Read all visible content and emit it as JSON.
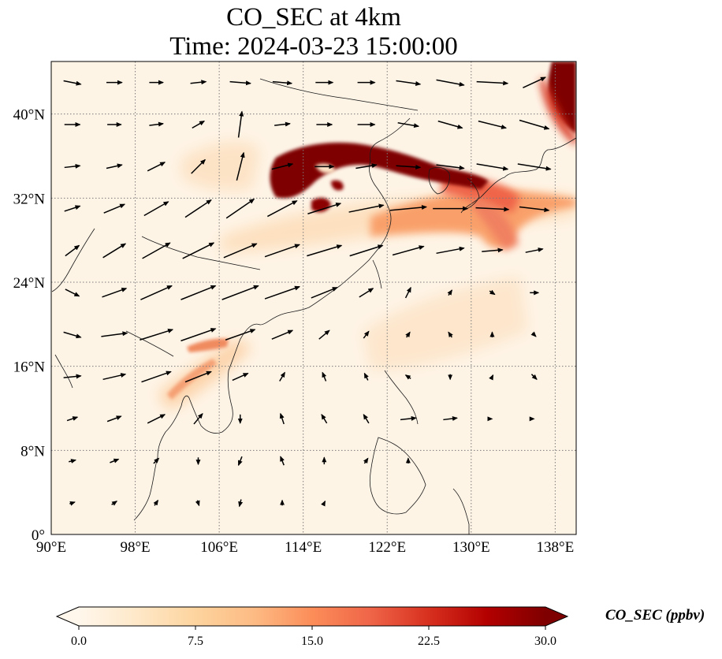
{
  "title": "CO_SEC at 4km",
  "subtitle": "Time: 2024-03-23 15:00:00",
  "map": {
    "lon_range": [
      90,
      140
    ],
    "lat_range": [
      0,
      45
    ],
    "lon_ticks": [
      "90°E",
      "98°E",
      "106°E",
      "114°E",
      "122°E",
      "130°E",
      "138°E"
    ],
    "lat_ticks": [
      "0°",
      "8°N",
      "16°N",
      "24°N",
      "32°N",
      "40°N"
    ],
    "gridlines": true,
    "colormap": "OrRd",
    "overlay": "wind vectors"
  },
  "colorbar": {
    "label": "CO_SEC (ppbv)",
    "ticks": [
      "0.0",
      "7.5",
      "15.0",
      "22.5",
      "30.0"
    ],
    "range": [
      0,
      30
    ],
    "extend": "both",
    "colors": [
      "#fff7ec",
      "#fee8c8",
      "#fdd49e",
      "#fdbb84",
      "#fc8d59",
      "#ef6548",
      "#d7301f",
      "#b30000",
      "#7f0000"
    ]
  },
  "plumes": [
    {
      "lon": 117,
      "lat": 34.5,
      "value": 30
    },
    {
      "lon": 113.5,
      "lat": 32.5,
      "value": 30
    },
    {
      "lon": 116,
      "lat": 31.5,
      "value": 28
    },
    {
      "lon": 124,
      "lat": 34.8,
      "value": 26
    },
    {
      "lon": 128.5,
      "lat": 34.0,
      "value": 24
    },
    {
      "lon": 131,
      "lat": 31,
      "value": 16
    },
    {
      "lon": 137,
      "lat": 28.5,
      "value": 13
    },
    {
      "lon": 139.5,
      "lat": 43,
      "value": 30
    },
    {
      "lon": 103,
      "lat": 17,
      "value": 11
    },
    {
      "lon": 101,
      "lat": 13.5,
      "value": 8
    }
  ],
  "wind_vectors": [
    {
      "lon": 92,
      "lat": 43,
      "u": 1.0,
      "v": -0.2
    },
    {
      "lon": 96,
      "lat": 43,
      "u": 0.9,
      "v": 0.0
    },
    {
      "lon": 100,
      "lat": 43,
      "u": 0.8,
      "v": 0.0
    },
    {
      "lon": 104,
      "lat": 43,
      "u": 0.9,
      "v": 0.1
    },
    {
      "lon": 108,
      "lat": 43,
      "u": 1.2,
      "v": -0.1
    },
    {
      "lon": 112,
      "lat": 43,
      "u": 1.1,
      "v": -0.1
    },
    {
      "lon": 116,
      "lat": 43,
      "u": 1.0,
      "v": 0.0
    },
    {
      "lon": 120,
      "lat": 43,
      "u": 1.0,
      "v": 0.0
    },
    {
      "lon": 124,
      "lat": 43,
      "u": 1.4,
      "v": -0.2
    },
    {
      "lon": 128,
      "lat": 43,
      "u": 1.6,
      "v": -0.3
    },
    {
      "lon": 132,
      "lat": 43,
      "u": 1.8,
      "v": -0.1
    },
    {
      "lon": 136,
      "lat": 43,
      "u": 1.3,
      "v": 0.6
    },
    {
      "lon": 92,
      "lat": 39,
      "u": 0.9,
      "v": 0.0
    },
    {
      "lon": 96,
      "lat": 39,
      "u": 0.8,
      "v": 0.0
    },
    {
      "lon": 100,
      "lat": 39,
      "u": 0.8,
      "v": 0.1
    },
    {
      "lon": 104,
      "lat": 39,
      "u": 0.7,
      "v": 0.4
    },
    {
      "lon": 108,
      "lat": 39,
      "u": 0.2,
      "v": 1.5
    },
    {
      "lon": 112,
      "lat": 39,
      "u": 0.9,
      "v": 0.1
    },
    {
      "lon": 116,
      "lat": 39,
      "u": 0.9,
      "v": 0.0
    },
    {
      "lon": 120,
      "lat": 39,
      "u": 1.0,
      "v": 0.0
    },
    {
      "lon": 124,
      "lat": 39,
      "u": 1.2,
      "v": -0.2
    },
    {
      "lon": 128,
      "lat": 39,
      "u": 1.4,
      "v": -0.4
    },
    {
      "lon": 132,
      "lat": 39,
      "u": 1.6,
      "v": -0.4
    },
    {
      "lon": 136,
      "lat": 39,
      "u": 1.7,
      "v": -0.5
    },
    {
      "lon": 92,
      "lat": 35,
      "u": 0.9,
      "v": 0.1
    },
    {
      "lon": 96,
      "lat": 35,
      "u": 0.9,
      "v": 0.2
    },
    {
      "lon": 100,
      "lat": 35,
      "u": 1.0,
      "v": 0.5
    },
    {
      "lon": 104,
      "lat": 35,
      "u": 0.8,
      "v": 0.8
    },
    {
      "lon": 108,
      "lat": 35,
      "u": 0.4,
      "v": 1.6
    },
    {
      "lon": 112,
      "lat": 35,
      "u": 1.2,
      "v": 0.3
    },
    {
      "lon": 116,
      "lat": 35,
      "u": 1.1,
      "v": 0.0
    },
    {
      "lon": 120,
      "lat": 35,
      "u": 1.2,
      "v": 0.2
    },
    {
      "lon": 124,
      "lat": 35,
      "u": 1.4,
      "v": -0.1
    },
    {
      "lon": 128,
      "lat": 35,
      "u": 1.6,
      "v": -0.2
    },
    {
      "lon": 132,
      "lat": 35,
      "u": 1.8,
      "v": -0.3
    },
    {
      "lon": 136,
      "lat": 35,
      "u": 1.9,
      "v": -0.3
    },
    {
      "lon": 92,
      "lat": 31,
      "u": 0.9,
      "v": 0.3
    },
    {
      "lon": 96,
      "lat": 31,
      "u": 1.2,
      "v": 0.5
    },
    {
      "lon": 100,
      "lat": 31,
      "u": 1.4,
      "v": 0.8
    },
    {
      "lon": 104,
      "lat": 31,
      "u": 1.5,
      "v": 1.0
    },
    {
      "lon": 108,
      "lat": 31,
      "u": 1.6,
      "v": 1.1
    },
    {
      "lon": 112,
      "lat": 31,
      "u": 1.7,
      "v": 0.9
    },
    {
      "lon": 116,
      "lat": 31,
      "u": 1.9,
      "v": 0.6
    },
    {
      "lon": 120,
      "lat": 31,
      "u": 2.0,
      "v": 0.4
    },
    {
      "lon": 124,
      "lat": 31,
      "u": 2.1,
      "v": 0.2
    },
    {
      "lon": 128,
      "lat": 31,
      "u": 2.0,
      "v": 0.0
    },
    {
      "lon": 132,
      "lat": 31,
      "u": 1.9,
      "v": -0.1
    },
    {
      "lon": 136,
      "lat": 31,
      "u": 1.7,
      "v": -0.2
    },
    {
      "lon": 92,
      "lat": 27,
      "u": 0.8,
      "v": 0.6
    },
    {
      "lon": 96,
      "lat": 27,
      "u": 1.3,
      "v": 0.8
    },
    {
      "lon": 100,
      "lat": 27,
      "u": 1.6,
      "v": 0.9
    },
    {
      "lon": 104,
      "lat": 27,
      "u": 1.8,
      "v": 0.9
    },
    {
      "lon": 108,
      "lat": 27,
      "u": 1.9,
      "v": 0.8
    },
    {
      "lon": 112,
      "lat": 27,
      "u": 2.0,
      "v": 0.7
    },
    {
      "lon": 116,
      "lat": 27,
      "u": 2.0,
      "v": 0.6
    },
    {
      "lon": 120,
      "lat": 27,
      "u": 1.9,
      "v": 0.6
    },
    {
      "lon": 124,
      "lat": 27,
      "u": 1.8,
      "v": 0.5
    },
    {
      "lon": 128,
      "lat": 27,
      "u": 1.6,
      "v": 0.3
    },
    {
      "lon": 132,
      "lat": 27,
      "u": 1.2,
      "v": 0.1
    },
    {
      "lon": 136,
      "lat": 27,
      "u": 1.0,
      "v": 0.2
    },
    {
      "lon": 92,
      "lat": 23,
      "u": 0.8,
      "v": -0.4
    },
    {
      "lon": 96,
      "lat": 23,
      "u": 1.4,
      "v": 0.5
    },
    {
      "lon": 100,
      "lat": 23,
      "u": 1.8,
      "v": 0.8
    },
    {
      "lon": 104,
      "lat": 23,
      "u": 2.0,
      "v": 0.8
    },
    {
      "lon": 108,
      "lat": 23,
      "u": 2.1,
      "v": 0.8
    },
    {
      "lon": 112,
      "lat": 23,
      "u": 2.0,
      "v": 0.7
    },
    {
      "lon": 116,
      "lat": 23,
      "u": 1.5,
      "v": 0.6
    },
    {
      "lon": 120,
      "lat": 23,
      "u": 0.8,
      "v": 0.5
    },
    {
      "lon": 124,
      "lat": 23,
      "u": 0.3,
      "v": 0.6
    },
    {
      "lon": 128,
      "lat": 23,
      "u": 0.2,
      "v": 0.3
    },
    {
      "lon": 132,
      "lat": 23,
      "u": 0.3,
      "v": -0.2
    },
    {
      "lon": 136,
      "lat": 23,
      "u": 0.5,
      "v": 0.0
    },
    {
      "lon": 92,
      "lat": 19,
      "u": 1.0,
      "v": -0.3
    },
    {
      "lon": 96,
      "lat": 19,
      "u": 1.5,
      "v": 0.2
    },
    {
      "lon": 100,
      "lat": 19,
      "u": 1.9,
      "v": 0.6
    },
    {
      "lon": 104,
      "lat": 19,
      "u": 2.0,
      "v": 0.7
    },
    {
      "lon": 108,
      "lat": 19,
      "u": 1.7,
      "v": 0.6
    },
    {
      "lon": 112,
      "lat": 19,
      "u": 1.2,
      "v": 0.5
    },
    {
      "lon": 116,
      "lat": 19,
      "u": 0.6,
      "v": 0.5
    },
    {
      "lon": 120,
      "lat": 19,
      "u": 0.3,
      "v": 0.4
    },
    {
      "lon": 124,
      "lat": 19,
      "u": 0.2,
      "v": 0.3
    },
    {
      "lon": 128,
      "lat": 19,
      "u": -0.2,
      "v": 0.3
    },
    {
      "lon": 132,
      "lat": 19,
      "u": 0.0,
      "v": 0.3
    },
    {
      "lon": 136,
      "lat": 19,
      "u": 0.2,
      "v": -0.2
    },
    {
      "lon": 92,
      "lat": 15,
      "u": 1.0,
      "v": 0.1
    },
    {
      "lon": 96,
      "lat": 15,
      "u": 1.3,
      "v": 0.3
    },
    {
      "lon": 100,
      "lat": 15,
      "u": 1.7,
      "v": 0.6
    },
    {
      "lon": 104,
      "lat": 15,
      "u": 1.5,
      "v": 0.6
    },
    {
      "lon": 108,
      "lat": 15,
      "u": 0.9,
      "v": 0.4
    },
    {
      "lon": 112,
      "lat": 15,
      "u": 0.3,
      "v": 0.5
    },
    {
      "lon": 116,
      "lat": 15,
      "u": -0.2,
      "v": 0.5
    },
    {
      "lon": 120,
      "lat": 15,
      "u": -0.2,
      "v": 0.4
    },
    {
      "lon": 124,
      "lat": 15,
      "u": -0.3,
      "v": 0.2
    },
    {
      "lon": 128,
      "lat": 15,
      "u": 0.0,
      "v": -0.3
    },
    {
      "lon": 132,
      "lat": 15,
      "u": 0.1,
      "v": 0.2
    },
    {
      "lon": 136,
      "lat": 15,
      "u": 0.3,
      "v": -0.3
    },
    {
      "lon": 92,
      "lat": 11,
      "u": 0.6,
      "v": 0.2
    },
    {
      "lon": 96,
      "lat": 11,
      "u": 0.8,
      "v": 0.3
    },
    {
      "lon": 100,
      "lat": 11,
      "u": 1.0,
      "v": 0.5
    },
    {
      "lon": 104,
      "lat": 11,
      "u": 0.5,
      "v": 0.6
    },
    {
      "lon": 108,
      "lat": 11,
      "u": 0.0,
      "v": -0.5
    },
    {
      "lon": 112,
      "lat": 11,
      "u": -0.2,
      "v": 0.6
    },
    {
      "lon": 116,
      "lat": 11,
      "u": -0.3,
      "v": 0.5
    },
    {
      "lon": 120,
      "lat": 11,
      "u": -0.3,
      "v": 0.5
    },
    {
      "lon": 124,
      "lat": 11,
      "u": 0.9,
      "v": 0.1
    },
    {
      "lon": 128,
      "lat": 11,
      "u": 0.8,
      "v": 0.1
    },
    {
      "lon": 132,
      "lat": 11,
      "u": 0.0,
      "v": 0.0
    },
    {
      "lon": 136,
      "lat": 11,
      "u": 0.0,
      "v": 0.0
    },
    {
      "lon": 92,
      "lat": 7,
      "u": 0.4,
      "v": 0.1
    },
    {
      "lon": 96,
      "lat": 7,
      "u": 0.5,
      "v": 0.2
    },
    {
      "lon": 100,
      "lat": 7,
      "u": 0.3,
      "v": 0.3
    },
    {
      "lon": 104,
      "lat": 7,
      "u": 0.0,
      "v": -0.4
    },
    {
      "lon": 108,
      "lat": 7,
      "u": -0.2,
      "v": -0.5
    },
    {
      "lon": 112,
      "lat": 7,
      "u": -0.2,
      "v": 0.5
    },
    {
      "lon": 116,
      "lat": 7,
      "u": 0.0,
      "v": 0.4
    },
    {
      "lon": 120,
      "lat": 7,
      "u": 0.2,
      "v": 0.3
    },
    {
      "lon": 124,
      "lat": 7,
      "u": 0.0,
      "v": 0.3
    },
    {
      "lon": 92,
      "lat": 3,
      "u": 0.3,
      "v": 0.1
    },
    {
      "lon": 96,
      "lat": 3,
      "u": 0.3,
      "v": 0.2
    },
    {
      "lon": 100,
      "lat": 3,
      "u": 0.2,
      "v": 0.3
    },
    {
      "lon": 104,
      "lat": 3,
      "u": 0.1,
      "v": -0.3
    },
    {
      "lon": 108,
      "lat": 3,
      "u": -0.1,
      "v": -0.4
    },
    {
      "lon": 112,
      "lat": 3,
      "u": 0.0,
      "v": 0.3
    },
    {
      "lon": 116,
      "lat": 3,
      "u": 0.1,
      "v": 0.2
    }
  ]
}
